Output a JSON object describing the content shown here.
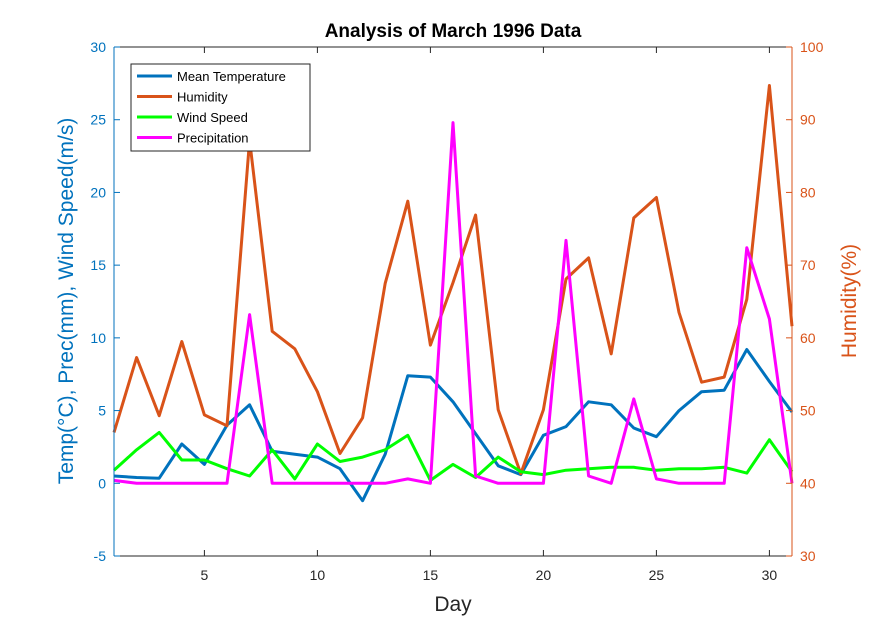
{
  "chart_data": {
    "type": "line",
    "title": "Analysis of March 1996 Data",
    "xlabel": "Day",
    "ylabel_left": "Temp(°C), Prec(mm), Wind Speed(m/s)",
    "ylabel_right": "Humidity(%)",
    "xlim": [
      1,
      31
    ],
    "ylim_left": [
      -5,
      30
    ],
    "ylim_right": [
      30,
      100
    ],
    "x_ticks": [
      5,
      10,
      15,
      20,
      25,
      30
    ],
    "y_ticks_left": [
      -5,
      0,
      5,
      10,
      15,
      20,
      25,
      30
    ],
    "y_ticks_right": [
      30,
      40,
      50,
      60,
      70,
      80,
      90,
      100
    ],
    "grid": false,
    "legend_position": "top-left",
    "colors": {
      "left_axis": "#0072BD",
      "right_axis": "#D95319"
    },
    "x": [
      1,
      2,
      3,
      4,
      5,
      6,
      7,
      8,
      9,
      10,
      11,
      12,
      13,
      14,
      15,
      16,
      17,
      18,
      19,
      20,
      21,
      22,
      23,
      24,
      25,
      26,
      27,
      28,
      29,
      30,
      31
    ],
    "series": [
      {
        "name": "Mean Temperature",
        "axis": "left",
        "color": "#0072BD",
        "values": [
          0.5,
          0.4,
          0.35,
          2.7,
          1.3,
          4.0,
          5.4,
          2.2,
          2.0,
          1.8,
          1.0,
          -1.2,
          2.0,
          7.4,
          7.3,
          5.6,
          3.4,
          1.2,
          0.6,
          3.3,
          3.9,
          5.6,
          5.4,
          3.8,
          3.2,
          5.0,
          6.3,
          6.4,
          9.2,
          7.0,
          4.9
        ]
      },
      {
        "name": "Humidity",
        "axis": "right",
        "color": "#D95319",
        "values": [
          47,
          57.3,
          49.3,
          59.5,
          49.4,
          47.9,
          87.2,
          60.9,
          58.5,
          52.6,
          44.1,
          49.0,
          67.5,
          78.8,
          59.0,
          67.6,
          76.9,
          50.1,
          41.3,
          50.1,
          68.1,
          71.0,
          57.8,
          76.5,
          79.3,
          63.5,
          53.9,
          54.6,
          65.3,
          94.7,
          61.6
        ]
      },
      {
        "name": "Wind Speed",
        "axis": "left",
        "color": "#00FF00",
        "values": [
          0.9,
          2.3,
          3.5,
          1.6,
          1.6,
          1.0,
          0.5,
          2.3,
          0.3,
          2.7,
          1.5,
          1.8,
          2.3,
          3.3,
          0.2,
          1.3,
          0.4,
          1.8,
          0.8,
          0.6,
          0.9,
          1.0,
          1.1,
          1.1,
          0.9,
          1.0,
          1.0,
          1.1,
          0.7,
          3.0,
          0.8
        ]
      },
      {
        "name": "Precipitation",
        "axis": "left",
        "color": "#FF00FF",
        "values": [
          0.2,
          0.0,
          0.0,
          0.0,
          0.0,
          0.0,
          11.6,
          0.0,
          0.0,
          0.0,
          0.0,
          0.0,
          0.0,
          0.3,
          0.0,
          24.8,
          0.5,
          0.0,
          0.0,
          0.0,
          16.7,
          0.5,
          0.0,
          5.8,
          0.3,
          0.0,
          0.0,
          0.0,
          16.2,
          11.3,
          0.0
        ]
      }
    ]
  }
}
